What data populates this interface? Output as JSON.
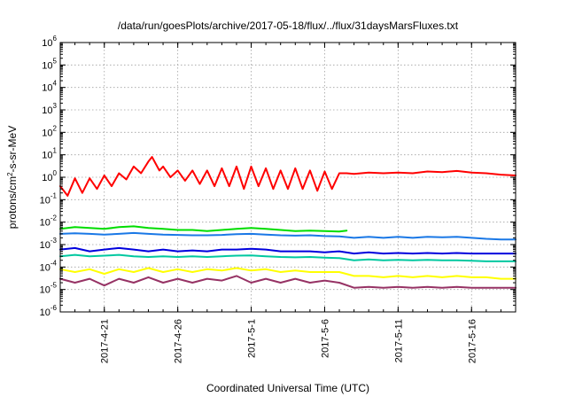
{
  "chart_data": {
    "type": "line",
    "title": "/data/run/goesPlots/archive/2017-05-18/flux/../flux/31daysMarsFluxes.txt",
    "xlabel": "Coordinated Universal Time (UTC)",
    "ylabel_prefix": "protons/cm",
    "ylabel_sup": "2",
    "ylabel_suffix": "-s-sr-MeV",
    "yscale": "log",
    "ylim": [
      1e-06,
      1000000.0
    ],
    "xlim": [
      "2017-04-18",
      "2017-05-19"
    ],
    "grid": true,
    "y_ticks": [
      {
        "value": 1e-06,
        "base": "10",
        "exp": "-6"
      },
      {
        "value": 1e-05,
        "base": "10",
        "exp": "-5"
      },
      {
        "value": 0.0001,
        "base": "10",
        "exp": "-4"
      },
      {
        "value": 0.001,
        "base": "10",
        "exp": "-3"
      },
      {
        "value": 0.01,
        "base": "10",
        "exp": "-2"
      },
      {
        "value": 0.1,
        "base": "10",
        "exp": "-1"
      },
      {
        "value": 1.0,
        "base": "10",
        "exp": "0"
      },
      {
        "value": 10.0,
        "base": "10",
        "exp": "1"
      },
      {
        "value": 100.0,
        "base": "10",
        "exp": "2"
      },
      {
        "value": 1000.0,
        "base": "10",
        "exp": "3"
      },
      {
        "value": 10000.0,
        "base": "10",
        "exp": "4"
      },
      {
        "value": 100000.0,
        "base": "10",
        "exp": "5"
      },
      {
        "value": 1000000.0,
        "base": "10",
        "exp": "6"
      }
    ],
    "x_ticks": [
      {
        "date": "2017-04-21",
        "label": "2017-4-21"
      },
      {
        "date": "2017-04-26",
        "label": "2017-4-26"
      },
      {
        "date": "2017-05-01",
        "label": "2017-5-1"
      },
      {
        "date": "2017-05-06",
        "label": "2017-5-6"
      },
      {
        "date": "2017-05-11",
        "label": "2017-5-11"
      },
      {
        "date": "2017-05-16",
        "label": "2017-5-16"
      }
    ],
    "series": [
      {
        "color": "#ff0000",
        "points": [
          [
            "2017-04-18",
            0.4
          ],
          [
            "2017-04-18T12:00",
            0.15
          ],
          [
            "2017-04-19",
            0.9
          ],
          [
            "2017-04-19T12:00",
            0.2
          ],
          [
            "2017-04-20",
            0.9
          ],
          [
            "2017-04-20T12:00",
            0.3
          ],
          [
            "2017-04-21",
            1.2
          ],
          [
            "2017-04-21T12:00",
            0.4
          ],
          [
            "2017-04-22",
            1.5
          ],
          [
            "2017-04-22T12:00",
            0.8
          ],
          [
            "2017-04-23",
            3
          ],
          [
            "2017-04-23T12:00",
            1.5
          ],
          [
            "2017-04-24",
            5
          ],
          [
            "2017-04-24T06:00",
            8
          ],
          [
            "2017-04-24T18:00",
            2
          ],
          [
            "2017-04-25",
            3
          ],
          [
            "2017-04-25T12:00",
            1
          ],
          [
            "2017-04-26",
            2
          ],
          [
            "2017-04-26T12:00",
            0.7
          ],
          [
            "2017-04-27",
            2
          ],
          [
            "2017-04-27T12:00",
            0.5
          ],
          [
            "2017-04-28",
            2
          ],
          [
            "2017-04-28T12:00",
            0.4
          ],
          [
            "2017-04-29",
            2.5
          ],
          [
            "2017-04-29T12:00",
            0.4
          ],
          [
            "2017-04-30",
            3
          ],
          [
            "2017-04-30T12:00",
            0.3
          ],
          [
            "2017-05-01",
            3
          ],
          [
            "2017-05-01T12:00",
            0.4
          ],
          [
            "2017-05-02",
            2.5
          ],
          [
            "2017-05-02T12:00",
            0.3
          ],
          [
            "2017-05-03",
            2
          ],
          [
            "2017-05-03T12:00",
            0.3
          ],
          [
            "2017-05-04",
            2.5
          ],
          [
            "2017-05-04T12:00",
            0.3
          ],
          [
            "2017-05-05",
            2
          ],
          [
            "2017-05-05T12:00",
            0.25
          ],
          [
            "2017-05-06",
            1.8
          ],
          [
            "2017-05-06T12:00",
            0.3
          ],
          [
            "2017-05-07",
            1.5
          ],
          [
            "2017-05-07T12:00",
            1.5
          ],
          [
            "2017-05-08",
            1.4
          ],
          [
            "2017-05-09",
            1.6
          ],
          [
            "2017-05-10",
            1.5
          ],
          [
            "2017-05-11",
            1.6
          ],
          [
            "2017-05-12",
            1.5
          ],
          [
            "2017-05-13",
            1.8
          ],
          [
            "2017-05-14",
            1.7
          ],
          [
            "2017-05-15",
            1.9
          ],
          [
            "2017-05-16",
            1.6
          ],
          [
            "2017-05-17",
            1.5
          ],
          [
            "2017-05-18",
            1.3
          ],
          [
            "2017-05-19",
            1.2
          ]
        ]
      },
      {
        "color": "#00dd00",
        "points": [
          [
            "2017-04-18",
            0.005
          ],
          [
            "2017-04-19",
            0.006
          ],
          [
            "2017-04-20",
            0.0055
          ],
          [
            "2017-04-21",
            0.005
          ],
          [
            "2017-04-22",
            0.006
          ],
          [
            "2017-04-23",
            0.0065
          ],
          [
            "2017-04-24",
            0.0055
          ],
          [
            "2017-04-25",
            0.005
          ],
          [
            "2017-04-26",
            0.0045
          ],
          [
            "2017-04-27",
            0.0045
          ],
          [
            "2017-04-28",
            0.004
          ],
          [
            "2017-04-29",
            0.0045
          ],
          [
            "2017-04-30",
            0.005
          ],
          [
            "2017-05-01",
            0.0055
          ],
          [
            "2017-05-02",
            0.005
          ],
          [
            "2017-05-03",
            0.0045
          ],
          [
            "2017-05-04",
            0.004
          ],
          [
            "2017-05-05",
            0.0042
          ],
          [
            "2017-05-06",
            0.004
          ],
          [
            "2017-05-07",
            0.0038
          ],
          [
            "2017-05-07T12:00",
            0.0042
          ]
        ]
      },
      {
        "color": "#1a78e6",
        "points": [
          [
            "2017-04-18",
            0.003
          ],
          [
            "2017-04-19",
            0.0032
          ],
          [
            "2017-04-20",
            0.003
          ],
          [
            "2017-04-21",
            0.0028
          ],
          [
            "2017-04-22",
            0.003
          ],
          [
            "2017-04-23",
            0.0033
          ],
          [
            "2017-04-24",
            0.003
          ],
          [
            "2017-04-25",
            0.0028
          ],
          [
            "2017-04-26",
            0.0027
          ],
          [
            "2017-04-27",
            0.0026
          ],
          [
            "2017-04-28",
            0.0026
          ],
          [
            "2017-04-29",
            0.0027
          ],
          [
            "2017-04-30",
            0.0029
          ],
          [
            "2017-05-01",
            0.003
          ],
          [
            "2017-05-02",
            0.0028
          ],
          [
            "2017-05-03",
            0.0026
          ],
          [
            "2017-05-04",
            0.0025
          ],
          [
            "2017-05-05",
            0.0026
          ],
          [
            "2017-05-06",
            0.0024
          ],
          [
            "2017-05-07",
            0.0023
          ],
          [
            "2017-05-08",
            0.002
          ],
          [
            "2017-05-09",
            0.0022
          ],
          [
            "2017-05-10",
            0.002
          ],
          [
            "2017-05-11",
            0.0022
          ],
          [
            "2017-05-12",
            0.002
          ],
          [
            "2017-05-13",
            0.0022
          ],
          [
            "2017-05-14",
            0.0021
          ],
          [
            "2017-05-15",
            0.0022
          ],
          [
            "2017-05-16",
            0.002
          ],
          [
            "2017-05-17",
            0.0018
          ],
          [
            "2017-05-18",
            0.0017
          ],
          [
            "2017-05-19",
            0.0017
          ]
        ]
      },
      {
        "color": "#0000dd",
        "points": [
          [
            "2017-04-18",
            0.0006
          ],
          [
            "2017-04-19",
            0.0007
          ],
          [
            "2017-04-20",
            0.0005
          ],
          [
            "2017-04-21",
            0.0006
          ],
          [
            "2017-04-22",
            0.0007
          ],
          [
            "2017-04-23",
            0.0006
          ],
          [
            "2017-04-24",
            0.0005
          ],
          [
            "2017-04-25",
            0.0006
          ],
          [
            "2017-04-26",
            0.0005
          ],
          [
            "2017-04-27",
            0.00055
          ],
          [
            "2017-04-28",
            0.0005
          ],
          [
            "2017-04-29",
            0.0006
          ],
          [
            "2017-04-30",
            0.0006
          ],
          [
            "2017-05-01",
            0.00065
          ],
          [
            "2017-05-02",
            0.0006
          ],
          [
            "2017-05-03",
            0.0005
          ],
          [
            "2017-05-04",
            0.0005
          ],
          [
            "2017-05-05",
            0.0005
          ],
          [
            "2017-05-06",
            0.00045
          ],
          [
            "2017-05-07",
            0.0005
          ],
          [
            "2017-05-08",
            0.0004
          ],
          [
            "2017-05-09",
            0.00045
          ],
          [
            "2017-05-10",
            0.0004
          ],
          [
            "2017-05-11",
            0.00042
          ],
          [
            "2017-05-12",
            0.0004
          ],
          [
            "2017-05-13",
            0.00042
          ],
          [
            "2017-05-14",
            0.0004
          ],
          [
            "2017-05-15",
            0.00042
          ],
          [
            "2017-05-16",
            0.0004
          ],
          [
            "2017-05-17",
            0.0004
          ],
          [
            "2017-05-18",
            0.0004
          ],
          [
            "2017-05-19",
            0.0004
          ]
        ]
      },
      {
        "color": "#00c8a0",
        "points": [
          [
            "2017-04-18",
            0.0003
          ],
          [
            "2017-04-19",
            0.00035
          ],
          [
            "2017-04-20",
            0.0003
          ],
          [
            "2017-04-21",
            0.00032
          ],
          [
            "2017-04-22",
            0.00035
          ],
          [
            "2017-04-23",
            0.0003
          ],
          [
            "2017-04-24",
            0.00028
          ],
          [
            "2017-04-25",
            0.0003
          ],
          [
            "2017-04-26",
            0.00028
          ],
          [
            "2017-04-27",
            0.0003
          ],
          [
            "2017-04-28",
            0.00028
          ],
          [
            "2017-04-29",
            0.0003
          ],
          [
            "2017-04-30",
            0.00032
          ],
          [
            "2017-05-01",
            0.00033
          ],
          [
            "2017-05-02",
            0.0003
          ],
          [
            "2017-05-03",
            0.00028
          ],
          [
            "2017-05-04",
            0.00027
          ],
          [
            "2017-05-05",
            0.00028
          ],
          [
            "2017-05-06",
            0.00026
          ],
          [
            "2017-05-07",
            0.00025
          ],
          [
            "2017-05-08",
            0.0002
          ],
          [
            "2017-05-09",
            0.00022
          ],
          [
            "2017-05-10",
            0.0002
          ],
          [
            "2017-05-11",
            0.00021
          ],
          [
            "2017-05-12",
            0.0002
          ],
          [
            "2017-05-13",
            0.00021
          ],
          [
            "2017-05-14",
            0.0002
          ],
          [
            "2017-05-15",
            0.0002
          ],
          [
            "2017-05-16",
            0.00019
          ],
          [
            "2017-05-17",
            0.00018
          ],
          [
            "2017-05-18",
            0.00018
          ],
          [
            "2017-05-19",
            0.00018
          ]
        ]
      },
      {
        "color": "#ffff00",
        "points": [
          [
            "2017-04-18",
            8e-05
          ],
          [
            "2017-04-19",
            6e-05
          ],
          [
            "2017-04-20",
            8e-05
          ],
          [
            "2017-04-21",
            5e-05
          ],
          [
            "2017-04-22",
            8e-05
          ],
          [
            "2017-04-23",
            6e-05
          ],
          [
            "2017-04-24",
            9e-05
          ],
          [
            "2017-04-25",
            6e-05
          ],
          [
            "2017-04-26",
            8e-05
          ],
          [
            "2017-04-27",
            6e-05
          ],
          [
            "2017-04-28",
            8e-05
          ],
          [
            "2017-04-29",
            7e-05
          ],
          [
            "2017-04-30",
            9e-05
          ],
          [
            "2017-05-01",
            7e-05
          ],
          [
            "2017-05-02",
            8e-05
          ],
          [
            "2017-05-03",
            6e-05
          ],
          [
            "2017-05-04",
            7e-05
          ],
          [
            "2017-05-05",
            6e-05
          ],
          [
            "2017-05-06",
            6e-05
          ],
          [
            "2017-05-07",
            6e-05
          ],
          [
            "2017-05-08",
            4e-05
          ],
          [
            "2017-05-09",
            4e-05
          ],
          [
            "2017-05-10",
            3.5e-05
          ],
          [
            "2017-05-11",
            4e-05
          ],
          [
            "2017-05-12",
            3.5e-05
          ],
          [
            "2017-05-13",
            4e-05
          ],
          [
            "2017-05-14",
            3.5e-05
          ],
          [
            "2017-05-15",
            4e-05
          ],
          [
            "2017-05-16",
            3.5e-05
          ],
          [
            "2017-05-17",
            3.5e-05
          ],
          [
            "2017-05-18",
            3e-05
          ],
          [
            "2017-05-19",
            3e-05
          ]
        ]
      },
      {
        "color": "#963264",
        "points": [
          [
            "2017-04-18",
            3e-05
          ],
          [
            "2017-04-19",
            2e-05
          ],
          [
            "2017-04-20",
            3e-05
          ],
          [
            "2017-04-21",
            1.5e-05
          ],
          [
            "2017-04-22",
            3e-05
          ],
          [
            "2017-04-23",
            2e-05
          ],
          [
            "2017-04-24",
            3.5e-05
          ],
          [
            "2017-04-25",
            2e-05
          ],
          [
            "2017-04-26",
            3e-05
          ],
          [
            "2017-04-27",
            2e-05
          ],
          [
            "2017-04-28",
            3e-05
          ],
          [
            "2017-04-29",
            2.5e-05
          ],
          [
            "2017-04-30",
            4e-05
          ],
          [
            "2017-05-01",
            2e-05
          ],
          [
            "2017-05-02",
            3e-05
          ],
          [
            "2017-05-03",
            2e-05
          ],
          [
            "2017-05-04",
            3e-05
          ],
          [
            "2017-05-05",
            2e-05
          ],
          [
            "2017-05-06",
            2.5e-05
          ],
          [
            "2017-05-07",
            2e-05
          ],
          [
            "2017-05-08",
            1.2e-05
          ],
          [
            "2017-05-09",
            1.3e-05
          ],
          [
            "2017-05-10",
            1.2e-05
          ],
          [
            "2017-05-11",
            1.3e-05
          ],
          [
            "2017-05-12",
            1.2e-05
          ],
          [
            "2017-05-13",
            1.3e-05
          ],
          [
            "2017-05-14",
            1.2e-05
          ],
          [
            "2017-05-15",
            1.3e-05
          ],
          [
            "2017-05-16",
            1.2e-05
          ],
          [
            "2017-05-17",
            1.2e-05
          ],
          [
            "2017-05-18",
            1.2e-05
          ],
          [
            "2017-05-19",
            1.2e-05
          ]
        ]
      }
    ]
  }
}
